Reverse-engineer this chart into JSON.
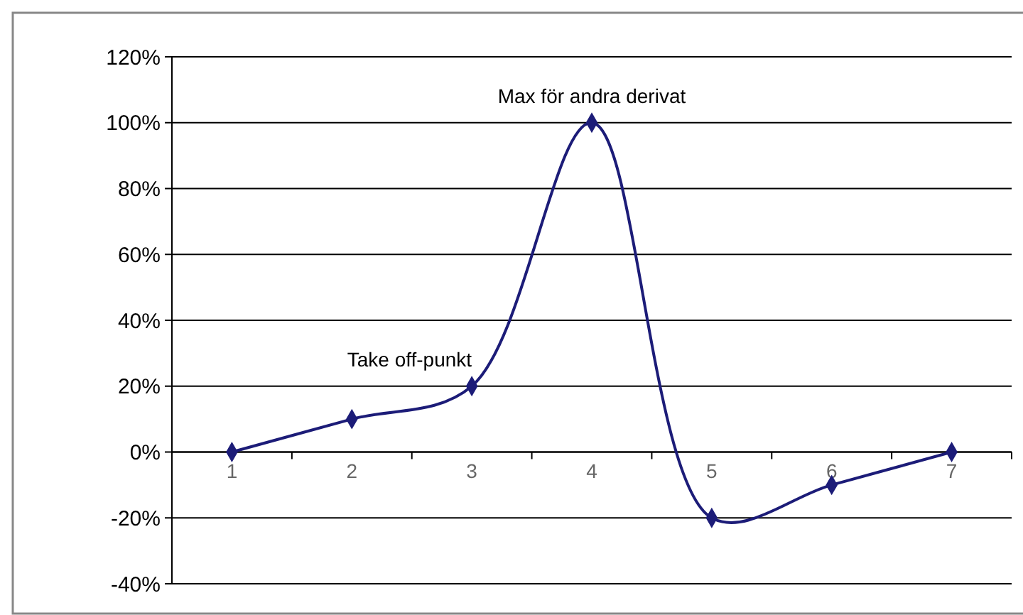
{
  "chart_data": {
    "type": "line",
    "categories": [
      "1",
      "2",
      "3",
      "4",
      "5",
      "6",
      "7"
    ],
    "series": [
      {
        "color": "#1c1c78",
        "values": [
          0,
          10,
          20,
          100,
          -20,
          -10,
          0
        ]
      }
    ],
    "ylim": [
      -40,
      120
    ],
    "yticks": [
      {
        "value": -40,
        "label": "-40%"
      },
      {
        "value": -20,
        "label": "-20%"
      },
      {
        "value": 0,
        "label": "0%"
      },
      {
        "value": 20,
        "label": "20%"
      },
      {
        "value": 40,
        "label": "40%"
      },
      {
        "value": 60,
        "label": "60%"
      },
      {
        "value": 80,
        "label": "80%"
      },
      {
        "value": 100,
        "label": "100%"
      },
      {
        "value": 120,
        "label": "120%"
      }
    ],
    "grid": "y",
    "marker": "diamond",
    "line_style": "solid",
    "annotations": [
      {
        "text": "Take off-punkt",
        "x": "3",
        "y": 20
      },
      {
        "text": "Max för andra derivat",
        "x": "4",
        "y": 100
      }
    ]
  }
}
